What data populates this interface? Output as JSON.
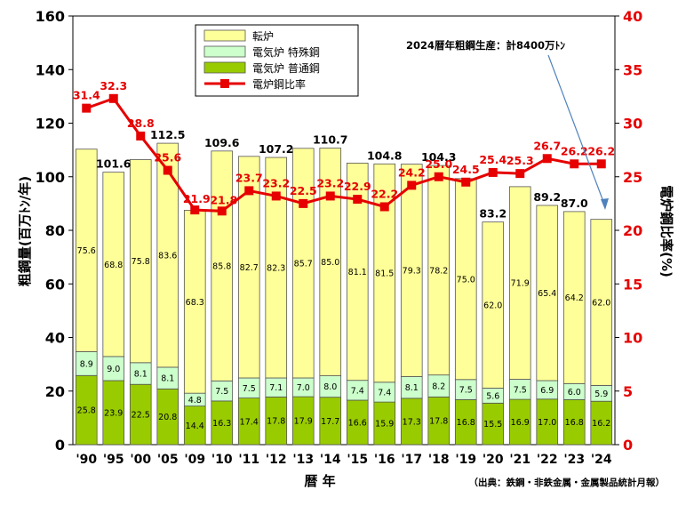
{
  "chart_data": {
    "type": "bar",
    "stacked": true,
    "categories": [
      "'90",
      "'95",
      "'00",
      "'05",
      "'09",
      "'10",
      "'11",
      "'12",
      "'13",
      "'14",
      "'15",
      "'16",
      "'17",
      "'18",
      "'19",
      "'20",
      "'21",
      "'22",
      "'23",
      "'24"
    ],
    "series": [
      {
        "name": "電気炉 普通鋼",
        "color": "#99cc00",
        "values": [
          25.8,
          23.9,
          22.5,
          20.8,
          14.4,
          16.3,
          17.4,
          17.8,
          17.9,
          17.7,
          16.6,
          15.9,
          17.3,
          17.8,
          16.8,
          15.5,
          16.9,
          17.0,
          16.8,
          16.2
        ]
      },
      {
        "name": "電気炉 特殊鋼",
        "color": "#ccffcc",
        "values": [
          8.9,
          9.0,
          8.1,
          8.1,
          4.8,
          7.5,
          7.5,
          7.1,
          7.0,
          8.0,
          7.4,
          7.4,
          8.1,
          8.2,
          7.5,
          5.6,
          7.5,
          6.9,
          6.0,
          5.9
        ]
      },
      {
        "name": "転炉",
        "color": "#ffff99",
        "values": [
          75.6,
          68.8,
          75.8,
          83.6,
          68.3,
          85.8,
          82.7,
          82.3,
          85.7,
          85.0,
          81.1,
          81.5,
          79.3,
          78.2,
          75.0,
          62.0,
          71.9,
          65.4,
          64.2,
          62.0
        ]
      }
    ],
    "segment_labels": {
      "電気炉 普通鋼": [
        "25.8",
        "23.9",
        "22.5",
        "20.8",
        "14.4",
        "16.3",
        "17.4",
        "17.8",
        "17.9",
        "17.7",
        "16.6",
        "15.9",
        "17.3",
        "17.8",
        "16.8",
        "15.5",
        "16.9",
        "17.0",
        "16.8",
        "16.2"
      ],
      "電気炉 特殊鋼": [
        "8.9",
        "9.0",
        "8.1",
        "8.1",
        "4.8",
        "7.5",
        "7.5",
        "7.1",
        "7.0",
        "8.0",
        "7.4",
        "7.4",
        "8.1",
        "8.2",
        "7.5",
        "5.6",
        "7.5",
        "6.9",
        "6.0",
        "5.9"
      ],
      "転炉": [
        "75.6",
        "68.8",
        "75.8",
        "83.6",
        "68.3",
        "85.8",
        "82.7",
        "82.3",
        "85.7",
        "85.0",
        "81.1",
        "81.5",
        "79.3",
        "78.2",
        "75.0",
        "62.0",
        "71.9",
        "65.4",
        "64.2",
        "62.0"
      ]
    },
    "total_labels": [
      "",
      "101.6",
      "",
      "112.5",
      "",
      "109.6",
      "",
      "107.2",
      "",
      "110.7",
      "",
      "104.8",
      "",
      "104.3",
      "",
      "83.2",
      "",
      "89.2",
      "87.0",
      ""
    ],
    "line_series": {
      "name": "電炉鋼比率",
      "color": "#e60000",
      "values": [
        31.4,
        32.3,
        28.8,
        25.6,
        21.9,
        21.8,
        23.7,
        23.2,
        22.5,
        23.2,
        22.9,
        22.2,
        24.2,
        25.0,
        24.5,
        25.4,
        25.3,
        26.7,
        26.2,
        26.2
      ],
      "labels": [
        "31.4",
        "32.3",
        "28.8",
        "25.6",
        "21.9",
        "21.8",
        "23.7",
        "23.2",
        "22.5",
        "23.2",
        "22.9",
        "22.2",
        "24.2",
        "25.0",
        "24.5",
        "25.4",
        "25.3",
        "26.7",
        "26.2",
        "26.2"
      ]
    },
    "ylim_left": [
      0,
      160
    ],
    "ylim_right": [
      0,
      40
    ],
    "yticks_left": [
      "0",
      "20",
      "40",
      "60",
      "80",
      "100",
      "120",
      "140",
      "160"
    ],
    "yticks_right": [
      "0",
      "5",
      "10",
      "15",
      "20",
      "25",
      "30",
      "35",
      "40"
    ],
    "ylabel_left": "粗鋼量(百万ﾄﾝ/年)",
    "ylabel_right": "電炉鋼比率(%)",
    "xlabel": "暦 年",
    "legend_position": "top-left",
    "annotation": "2024暦年粗鋼生産：計8400万ﾄﾝ",
    "source": "（出典：鉄鋼・非鉄金属・金属製品統計月報）"
  }
}
